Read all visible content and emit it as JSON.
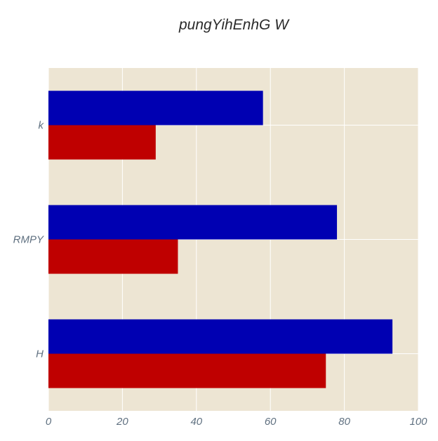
{
  "chart_data": {
    "type": "bar",
    "orientation": "horizontal",
    "title": "pungYihEnhG W",
    "xlabel": "",
    "ylabel": "",
    "categories": [
      "k",
      "RMPY",
      "H"
    ],
    "series": [
      {
        "color": "#0000b2",
        "values": [
          58,
          78,
          93
        ]
      },
      {
        "color": "#bf0000",
        "values": [
          29,
          35,
          75
        ]
      }
    ],
    "xlim": [
      0,
      100
    ],
    "xticks": [
      0,
      20,
      40,
      60,
      80,
      100
    ],
    "xtick_labels": [
      "0",
      "20",
      "40",
      "60",
      "80",
      "100"
    ],
    "grid": true,
    "legend": "none",
    "plot_background": "#ede5d3"
  }
}
